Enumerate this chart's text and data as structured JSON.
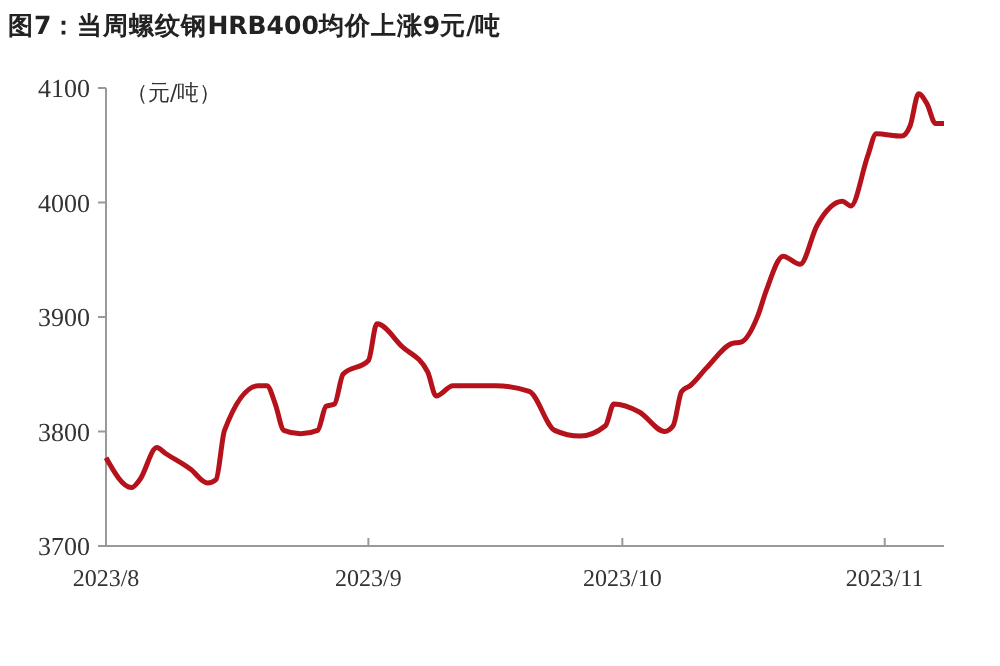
{
  "chart_data": {
    "type": "line",
    "title": "图7：当周螺纹钢HRB400均价上涨9元/吨",
    "ylabel": "（元/吨）",
    "x": [
      "2023-08-01",
      "2023-08-04",
      "2023-08-05",
      "2023-08-07",
      "2023-08-08",
      "2023-08-11",
      "2023-08-13",
      "2023-08-14",
      "2023-08-15",
      "2023-08-19",
      "2023-08-20",
      "2023-08-21",
      "2023-08-22",
      "2023-08-24",
      "2023-08-26",
      "2023-08-27",
      "2023-08-28",
      "2023-08-29",
      "2023-09-01",
      "2023-09-02",
      "2023-09-05",
      "2023-09-08",
      "2023-09-09",
      "2023-09-11",
      "2023-09-16",
      "2023-09-20",
      "2023-09-23",
      "2023-09-26",
      "2023-09-29",
      "2023-09-30",
      "2023-10-03",
      "2023-10-06",
      "2023-10-07",
      "2023-10-08",
      "2023-10-09",
      "2023-10-11",
      "2023-10-14",
      "2023-10-15",
      "2023-10-17",
      "2023-10-18",
      "2023-10-20",
      "2023-10-22",
      "2023-10-24",
      "2023-10-27",
      "2023-10-28",
      "2023-10-30",
      "2023-10-31",
      "2023-11-03",
      "2023-11-04",
      "2023-11-05",
      "2023-11-06",
      "2023-11-07",
      "2023-11-08"
    ],
    "series": [
      {
        "color": "#b5121b",
        "values": [
          3777,
          3751,
          3758,
          3786,
          3781,
          3767,
          3755,
          3758,
          3801,
          3840,
          3840,
          3824,
          3801,
          3798,
          3801,
          3822,
          3824,
          3850,
          3862,
          3894,
          3874,
          3852,
          3831,
          3840,
          3840,
          3835,
          3801,
          3796,
          3805,
          3824,
          3817,
          3800,
          3805,
          3835,
          3840,
          3856,
          3877,
          3878,
          3901,
          3923,
          3953,
          3946,
          3980,
          4001,
          3997,
          4041,
          4060,
          4058,
          4067,
          4095,
          4086,
          4069,
          4069
        ]
      }
    ],
    "xlim": [
      "2023-08-01",
      "2023-11-08"
    ],
    "xticks": [
      {
        "value": "2023-08-01",
        "label": "2023/8"
      },
      {
        "value": "2023-09-01",
        "label": "2023/9"
      },
      {
        "value": "2023-10-01",
        "label": "2023/10"
      },
      {
        "value": "2023-11-01",
        "label": "2023/11"
      }
    ],
    "ylim": [
      3700,
      4100
    ],
    "yticks": [
      3700,
      3800,
      3900,
      4000,
      4100
    ],
    "grid": false
  }
}
